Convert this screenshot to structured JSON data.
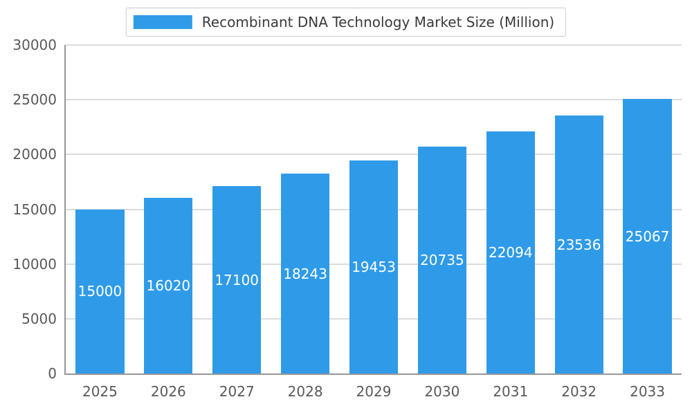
{
  "chart_data": {
    "type": "bar",
    "title": "Recombinant DNA Technology Market Size (Million)",
    "categories": [
      "2025",
      "2026",
      "2027",
      "2028",
      "2029",
      "2030",
      "2031",
      "2032",
      "2033"
    ],
    "values": [
      15000,
      16020,
      17100,
      18243,
      19453,
      20735,
      22094,
      23536,
      25067
    ],
    "xlabel": "",
    "ylabel": "",
    "ylim": [
      0,
      30000
    ],
    "yticks": [
      0,
      5000,
      10000,
      15000,
      20000,
      25000,
      30000
    ],
    "bar_color": "#2F9BE8",
    "bar_label_color": "#ffffff",
    "axis_color": "#979797",
    "gridline_color": "#dcdcdc",
    "tick_label_color": "#595959",
    "title_color": "#3b3b3b",
    "grid": true,
    "legend_position": "top"
  }
}
